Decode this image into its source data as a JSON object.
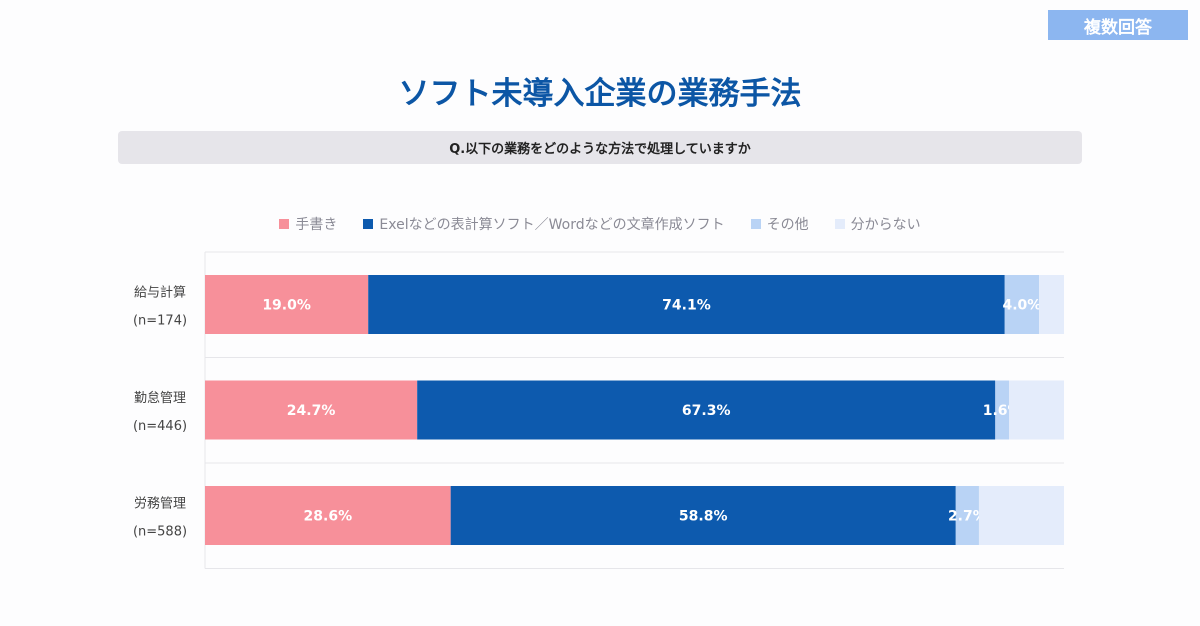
{
  "badge": "複数回答",
  "title": "ソフト未導入企業の業務手法",
  "question": "Q.以下の業務をどのような方法で処理していますか",
  "chart_data": {
    "type": "bar",
    "orientation": "horizontal",
    "stacked": true,
    "xlim": [
      0,
      100
    ],
    "legend_position": "top",
    "categories": [
      {
        "name": "給与計算",
        "n": "(n=174)"
      },
      {
        "name": "勤怠管理",
        "n": "(n=446)"
      },
      {
        "name": "労務管理",
        "n": "(n=588)"
      }
    ],
    "series": [
      {
        "name": "手書き",
        "color": "#f7909a",
        "values": [
          19.0,
          24.7,
          28.6
        ],
        "labels": [
          "19.0%",
          "24.7%",
          "28.6%"
        ],
        "label_color": "#ffffff"
      },
      {
        "name": "Exelなどの表計算ソフト／Wordなどの文章作成ソフト",
        "color": "#0d5aae",
        "values": [
          74.1,
          67.3,
          58.8
        ],
        "labels": [
          "74.1%",
          "67.3%",
          "58.8%"
        ],
        "label_color": "#ffffff"
      },
      {
        "name": "その他",
        "color": "#b9d3f5",
        "values": [
          4.0,
          1.6,
          2.7
        ],
        "labels": [
          "4.0%",
          "1.6%",
          "2.7%"
        ],
        "label_color": "#ffffff"
      },
      {
        "name": "分からない",
        "color": "#e4ecfb",
        "values": [
          3.0,
          6.4,
          9.9
        ],
        "labels": [
          "",
          "",
          ""
        ],
        "label_color": "#ffffff"
      }
    ]
  }
}
